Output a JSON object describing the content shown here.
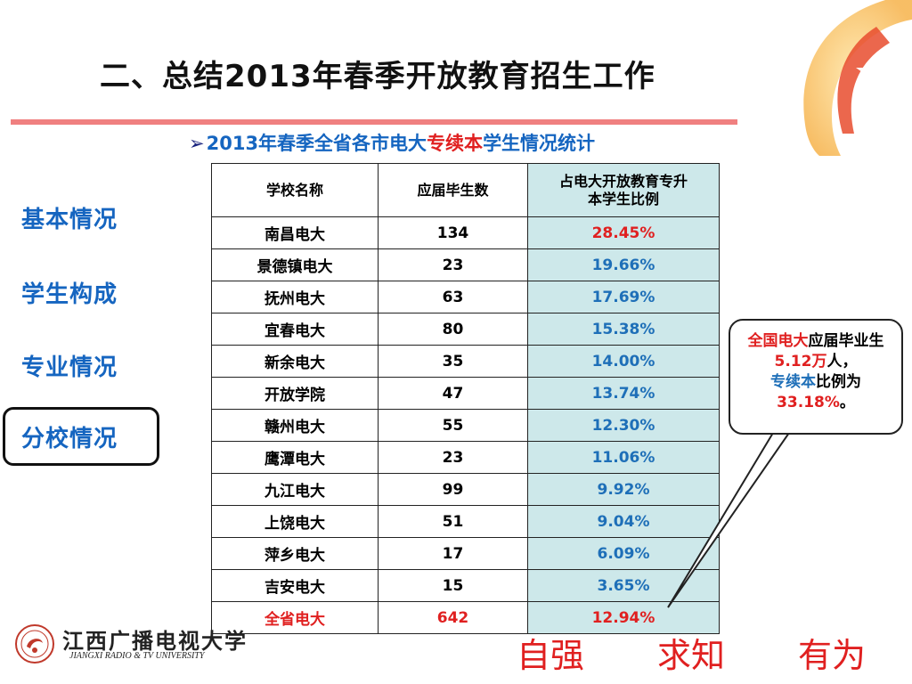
{
  "title": "二、总结2013年春季开放教育招生工作",
  "subtitle": {
    "part1": "2013年春季全省各市电大",
    "highlight": "专续本",
    "part2": "学生情况统计"
  },
  "nav": [
    {
      "label": "基本情况"
    },
    {
      "label": "学生构成"
    },
    {
      "label": "专业情况"
    },
    {
      "label": "分校情况",
      "active": true
    }
  ],
  "table": {
    "headers": [
      "学校名称",
      "应届毕生数",
      "占电大开放教育专升本学生比例"
    ],
    "header_pct_line1": "占电大开放教育专升",
    "header_pct_line2": "本学生比例",
    "rows": [
      {
        "name": "南昌电大",
        "count": "134",
        "pct": "28.45%",
        "pct_color": "red"
      },
      {
        "name": "景德镇电大",
        "count": "23",
        "pct": "19.66%"
      },
      {
        "name": "抚州电大",
        "count": "63",
        "pct": "17.69%"
      },
      {
        "name": "宜春电大",
        "count": "80",
        "pct": "15.38%"
      },
      {
        "name": "新余电大",
        "count": "35",
        "pct": "14.00%"
      },
      {
        "name": "开放学院",
        "count": "47",
        "pct": "13.74%"
      },
      {
        "name": "赣州电大",
        "count": "55",
        "pct": "12.30%"
      },
      {
        "name": "鹰潭电大",
        "count": "23",
        "pct": "11.06%"
      },
      {
        "name": "九江电大",
        "count": "99",
        "pct": "9.92%"
      },
      {
        "name": "上饶电大",
        "count": "51",
        "pct": "9.04%"
      },
      {
        "name": "萍乡电大",
        "count": "17",
        "pct": "6.09%"
      },
      {
        "name": "吉安电大",
        "count": "15",
        "pct": "3.65%"
      }
    ],
    "total": {
      "name": "全省电大",
      "count": "642",
      "pct": "12.94%"
    }
  },
  "callout": {
    "seg1": "全国电大",
    "seg2": "应届毕业生",
    "seg3": "5.12万",
    "seg4": "人，",
    "seg5": "专续本",
    "seg6": "比例为",
    "seg7": "33.18%",
    "seg8": "。"
  },
  "logo": {
    "cn": "江西广播电视大学",
    "en": "JIANGXI RADIO & TV UNIVERSITY"
  },
  "slogan": [
    "自强",
    "求知",
    "有为"
  ],
  "colors": {
    "accent_blue": "#1565c0",
    "accent_red": "#e02020",
    "pct_column_bg": "#cde8ea",
    "title_rule": "#f08080"
  }
}
